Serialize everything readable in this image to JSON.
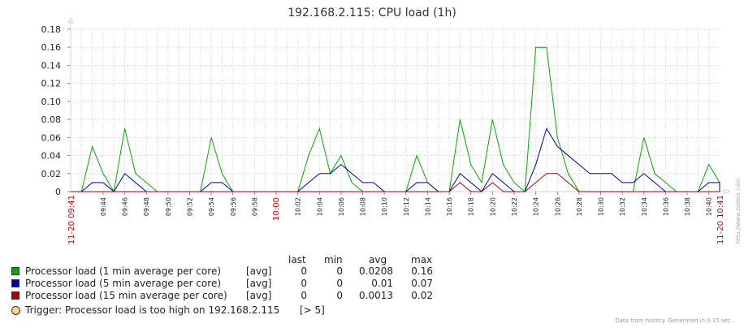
{
  "chart_data": {
    "type": "line",
    "title": "192.168.2.115: CPU load (1h)",
    "ylim": [
      0,
      0.18
    ],
    "y_ticks": [
      "0.18",
      "0.16",
      "0.14",
      "0.12",
      "0.10",
      "0.08",
      "0.06",
      "0.04",
      "0.02",
      "0"
    ],
    "x_start_label": "11-20 09:41",
    "x_end_label": "11-20 10:41",
    "x_tick_labels": [
      "09:44",
      "09:46",
      "09:48",
      "09:50",
      "09:52",
      "09:54",
      "09:56",
      "09:58",
      "10:00",
      "10:02",
      "10:04",
      "10:06",
      "10:08",
      "10:10",
      "10:12",
      "10:14",
      "10:16",
      "10:18",
      "10:20",
      "10:22",
      "10:24",
      "10:26",
      "10:28",
      "10:30",
      "10:32",
      "10:34",
      "10:36",
      "10:38",
      "10:40"
    ],
    "x_tick_minutes": [
      3,
      5,
      7,
      9,
      11,
      13,
      15,
      17,
      19,
      21,
      23,
      25,
      27,
      29,
      31,
      33,
      35,
      37,
      39,
      41,
      43,
      45,
      47,
      49,
      51,
      53,
      55,
      57,
      59
    ],
    "x_red_ticks": [
      "10:00"
    ],
    "grid": true,
    "series": [
      {
        "name": "Processor load (1 min average per core)",
        "color": "#00aa00",
        "points": [
          [
            0,
            0
          ],
          [
            1,
            0
          ],
          [
            2,
            0.05
          ],
          [
            3,
            0.02
          ],
          [
            4,
            0
          ],
          [
            5,
            0.07
          ],
          [
            6,
            0.02
          ],
          [
            7,
            0.01
          ],
          [
            8,
            0
          ],
          [
            9,
            0
          ],
          [
            10,
            0
          ],
          [
            11,
            0
          ],
          [
            12,
            0
          ],
          [
            13,
            0.06
          ],
          [
            14,
            0.02
          ],
          [
            15,
            0
          ],
          [
            16,
            0
          ],
          [
            17,
            0
          ],
          [
            18,
            0
          ],
          [
            19,
            0
          ],
          [
            20,
            0
          ],
          [
            21,
            0
          ],
          [
            22,
            0.04
          ],
          [
            23,
            0.07
          ],
          [
            24,
            0.02
          ],
          [
            25,
            0.04
          ],
          [
            26,
            0.01
          ],
          [
            27,
            0
          ],
          [
            28,
            0
          ],
          [
            29,
            0
          ],
          [
            30,
            0
          ],
          [
            31,
            0
          ],
          [
            32,
            0.04
          ],
          [
            33,
            0.01
          ],
          [
            34,
            0
          ],
          [
            35,
            0
          ],
          [
            36,
            0.08
          ],
          [
            37,
            0.03
          ],
          [
            38,
            0.01
          ],
          [
            39,
            0.08
          ],
          [
            40,
            0.03
          ],
          [
            41,
            0.01
          ],
          [
            42,
            0
          ],
          [
            43,
            0.16
          ],
          [
            44,
            0.16
          ],
          [
            45,
            0.06
          ],
          [
            46,
            0.02
          ],
          [
            47,
            0
          ],
          [
            48,
            0
          ],
          [
            49,
            0
          ],
          [
            50,
            0
          ],
          [
            51,
            0
          ],
          [
            52,
            0
          ],
          [
            53,
            0.06
          ],
          [
            54,
            0.02
          ],
          [
            55,
            0.01
          ],
          [
            56,
            0
          ],
          [
            57,
            0
          ],
          [
            58,
            0
          ],
          [
            59,
            0.03
          ],
          [
            60,
            0.01
          ],
          [
            61,
            0
          ]
        ]
      },
      {
        "name": "Processor load (5 min average per core)",
        "color": "#0000aa",
        "points": [
          [
            0,
            0
          ],
          [
            1,
            0
          ],
          [
            2,
            0.01
          ],
          [
            3,
            0.01
          ],
          [
            4,
            0
          ],
          [
            5,
            0.02
          ],
          [
            6,
            0.01
          ],
          [
            7,
            0
          ],
          [
            8,
            0
          ],
          [
            9,
            0
          ],
          [
            10,
            0
          ],
          [
            11,
            0
          ],
          [
            12,
            0
          ],
          [
            13,
            0.01
          ],
          [
            14,
            0.01
          ],
          [
            15,
            0
          ],
          [
            16,
            0
          ],
          [
            17,
            0
          ],
          [
            18,
            0
          ],
          [
            19,
            0
          ],
          [
            20,
            0
          ],
          [
            21,
            0
          ],
          [
            22,
            0.01
          ],
          [
            23,
            0.02
          ],
          [
            24,
            0.02
          ],
          [
            25,
            0.03
          ],
          [
            26,
            0.02
          ],
          [
            27,
            0.01
          ],
          [
            28,
            0.01
          ],
          [
            29,
            0
          ],
          [
            30,
            0
          ],
          [
            31,
            0
          ],
          [
            32,
            0.01
          ],
          [
            33,
            0.01
          ],
          [
            34,
            0
          ],
          [
            35,
            0
          ],
          [
            36,
            0.02
          ],
          [
            37,
            0.01
          ],
          [
            38,
            0
          ],
          [
            39,
            0.02
          ],
          [
            40,
            0.01
          ],
          [
            41,
            0
          ],
          [
            42,
            0
          ],
          [
            43,
            0.03
          ],
          [
            44,
            0.07
          ],
          [
            45,
            0.05
          ],
          [
            46,
            0.04
          ],
          [
            47,
            0.03
          ],
          [
            48,
            0.02
          ],
          [
            49,
            0.02
          ],
          [
            50,
            0.02
          ],
          [
            51,
            0.01
          ],
          [
            52,
            0.01
          ],
          [
            53,
            0.02
          ],
          [
            54,
            0.01
          ],
          [
            55,
            0
          ],
          [
            56,
            0
          ],
          [
            57,
            0
          ],
          [
            58,
            0
          ],
          [
            59,
            0.01
          ],
          [
            60,
            0.01
          ],
          [
            61,
            0
          ]
        ]
      },
      {
        "name": "Processor load (15 min average per core)",
        "color": "#aa0000",
        "points": [
          [
            0,
            0
          ],
          [
            1,
            0
          ],
          [
            2,
            0
          ],
          [
            3,
            0
          ],
          [
            4,
            0
          ],
          [
            5,
            0
          ],
          [
            6,
            0
          ],
          [
            7,
            0
          ],
          [
            8,
            0
          ],
          [
            9,
            0
          ],
          [
            10,
            0
          ],
          [
            11,
            0
          ],
          [
            12,
            0
          ],
          [
            13,
            0
          ],
          [
            14,
            0
          ],
          [
            15,
            0
          ],
          [
            16,
            0
          ],
          [
            17,
            0
          ],
          [
            18,
            0
          ],
          [
            19,
            0
          ],
          [
            20,
            0
          ],
          [
            21,
            0
          ],
          [
            22,
            0
          ],
          [
            23,
            0
          ],
          [
            24,
            0
          ],
          [
            25,
            0
          ],
          [
            26,
            0
          ],
          [
            27,
            0
          ],
          [
            28,
            0
          ],
          [
            29,
            0
          ],
          [
            30,
            0
          ],
          [
            31,
            0
          ],
          [
            32,
            0
          ],
          [
            33,
            0
          ],
          [
            34,
            0
          ],
          [
            35,
            0
          ],
          [
            36,
            0.01
          ],
          [
            37,
            0
          ],
          [
            38,
            0
          ],
          [
            39,
            0.01
          ],
          [
            40,
            0
          ],
          [
            41,
            0
          ],
          [
            42,
            0
          ],
          [
            43,
            0.01
          ],
          [
            44,
            0.02
          ],
          [
            45,
            0.02
          ],
          [
            46,
            0.01
          ],
          [
            47,
            0
          ],
          [
            48,
            0
          ],
          [
            49,
            0
          ],
          [
            50,
            0
          ],
          [
            51,
            0
          ],
          [
            52,
            0
          ],
          [
            53,
            0
          ],
          [
            54,
            0
          ],
          [
            55,
            0
          ],
          [
            56,
            0
          ],
          [
            57,
            0
          ],
          [
            58,
            0
          ],
          [
            59,
            0
          ],
          [
            60,
            0
          ],
          [
            61,
            0
          ]
        ]
      }
    ],
    "legend": {
      "headers": {
        "last": "last",
        "min": "min",
        "avg": "avg",
        "max": "max"
      },
      "rows": [
        {
          "name": "Processor load (1 min average per core)",
          "func": "[avg]",
          "last": "0",
          "min": "0",
          "avg": "0.0208",
          "max": "0.16",
          "color": "#00aa00"
        },
        {
          "name": "Processor load (5 min average per core)",
          "func": "[avg]",
          "last": "0",
          "min": "0",
          "avg": "0.01",
          "max": "0.07",
          "color": "#0000aa"
        },
        {
          "name": "Processor load (15 min average per core)",
          "func": "[avg]",
          "last": "0",
          "min": "0",
          "avg": "0.0013",
          "max": "0.02",
          "color": "#aa0000"
        }
      ],
      "trigger": {
        "label": "Trigger: Processor load is too high on 192.168.2.115",
        "value": "[> 5]",
        "color": "#ffd280"
      }
    }
  },
  "footer": "Data from history. Generated in 0.15 sec.",
  "watermark": "http://www.zabbix.com"
}
